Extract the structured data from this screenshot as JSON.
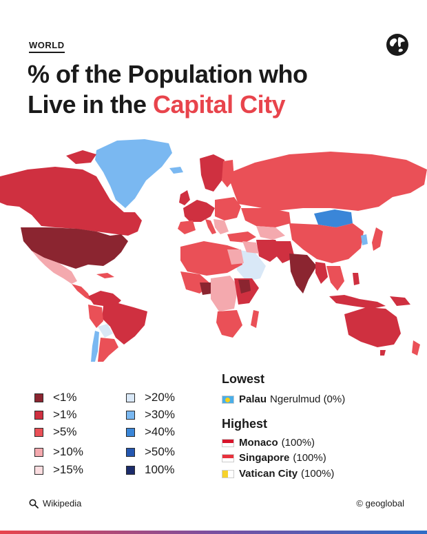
{
  "header": {
    "kicker": "WORLD",
    "title_line1": "% of the Population who",
    "title_line2_prefix": "Live in the ",
    "title_line2_accent": "Capital City"
  },
  "colors": {
    "accent": "#e8444c",
    "lt1": "#8b2530",
    "gt1": "#cf3040",
    "gt5": "#ea5057",
    "gt10": "#f4a9ae",
    "gt15": "#fbdde0",
    "gt20": "#d9e8f7",
    "gt30": "#7ab8f1",
    "gt40": "#3a86d8",
    "gt50": "#2457b0",
    "p100": "#1c2c6b",
    "ocean": "#ffffff"
  },
  "legend": [
    {
      "label": "<1%",
      "color": "#8b2530"
    },
    {
      "label": ">1%",
      "color": "#cf3040"
    },
    {
      "label": ">5%",
      "color": "#ea5057"
    },
    {
      "label": ">10%",
      "color": "#f4a9ae"
    },
    {
      "label": ">15%",
      "color": "#fbdde0"
    },
    {
      "label": ">20%",
      "color": "#d9e8f7"
    },
    {
      "label": ">30%",
      "color": "#7ab8f1"
    },
    {
      "label": ">40%",
      "color": "#3a86d8"
    },
    {
      "label": ">50%",
      "color": "#2457b0"
    },
    {
      "label": "100%",
      "color": "#1c2c6b"
    }
  ],
  "lowest": {
    "heading": "Lowest",
    "items": [
      {
        "country": "Palau",
        "detail": "Ngerulmud (0%)",
        "flag_icon": "palau-flag-icon"
      }
    ]
  },
  "highest": {
    "heading": "Highest",
    "items": [
      {
        "country": "Monaco",
        "detail": "(100%)",
        "flag_icon": "monaco-flag-icon"
      },
      {
        "country": "Singapore",
        "detail": "(100%)",
        "flag_icon": "singapore-flag-icon"
      },
      {
        "country": "Vatican City",
        "detail": "(100%)",
        "flag_icon": "vatican-flag-icon"
      }
    ]
  },
  "footer": {
    "source": "Wikipedia",
    "source_icon": "search-icon",
    "credit": "© geoglobal"
  }
}
